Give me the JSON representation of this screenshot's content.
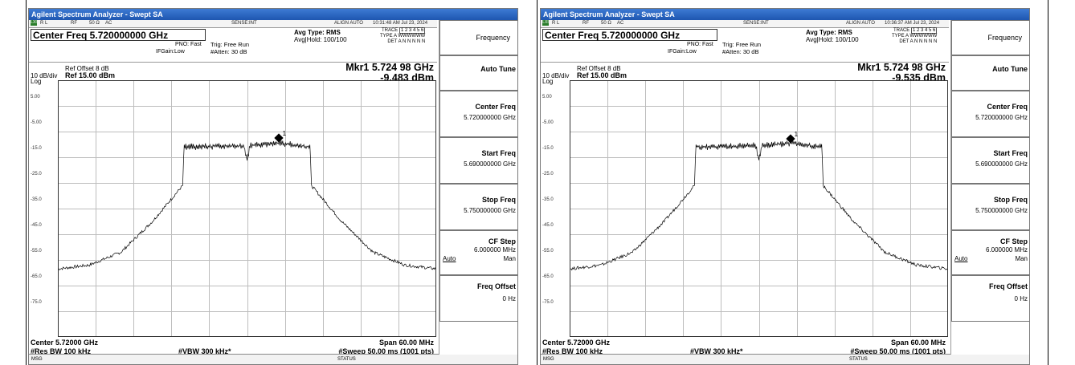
{
  "shared": {
    "window_title": "Agilent Spectrum Analyzer - Swept SA",
    "status": {
      "rl": "R L",
      "rf": "RF",
      "ohm": "50 Ω",
      "ac": "AC",
      "sense": "SENSE:INT",
      "align": "ALIGN AUTO"
    },
    "center_freq_box": "Center Freq 5.720000000 GHz",
    "pno": "PNO: Fast",
    "ifgain": "IFGain:Low",
    "trig": "Trig: Free Run",
    "atten": "#Atten: 30 dB",
    "avg_type": "Avg Type: RMS",
    "avg_hold": "Avg|Hold: 100/100",
    "trace_label": "TRACE",
    "trace_nums": "1 2 3 4 5 6",
    "type_label": "TYPE",
    "type_vals": "A WWWWWW",
    "det_label": "DET",
    "det_vals": "A N N N N N",
    "ref_offset": "Ref Offset 8 dB",
    "scale": "10 dB/div",
    "ref_level": "Ref 15.00 dBm",
    "log": "Log",
    "y_ticks": [
      "5.00",
      "-5.00",
      "-15.0",
      "-25.0",
      "-35.0",
      "-45.0",
      "-55.0",
      "-65.0",
      "-75.0"
    ],
    "center_bottom": "Center 5.72000 GHz",
    "span": "Span 60.00 MHz",
    "rbw": "#Res BW 100 kHz",
    "vbw": "#VBW 300 kHz*",
    "sweep": "#Sweep  50.00 ms (1001 pts)",
    "msg": "MSG",
    "status_label": "STATUS",
    "marker_num": "1"
  },
  "menu": {
    "frequency": "Frequency",
    "auto_tune": "Auto Tune",
    "center_freq": "Center Freq",
    "center_freq_val": "5.720000000 GHz",
    "start_freq": "Start Freq",
    "start_freq_val": "5.690000000 GHz",
    "stop_freq": "Stop Freq",
    "stop_freq_val": "5.750000000 GHz",
    "cf_step": "CF Step",
    "cf_step_val": "6.000000 MHz",
    "auto": "Auto",
    "man": "Man",
    "freq_offset": "Freq Offset",
    "freq_offset_val": "0 Hz"
  },
  "screens": [
    {
      "timestamp": "10:31:48 AM Jul 23, 2024",
      "marker_freq": "Mkr1 5.724 98 GHz",
      "marker_level": "-9.483 dBm"
    },
    {
      "timestamp": "10:36:37 AM Jul 23, 2024",
      "marker_freq": "Mkr1 5.724 98 GHz",
      "marker_level": "-9.535 dBm"
    }
  ],
  "chart_data": {
    "type": "line",
    "title": "",
    "xlabel": "",
    "ylabel": "",
    "xlim": [
      5.69,
      5.75
    ],
    "ylim": [
      -85,
      15
    ],
    "x_unit": "GHz",
    "y_unit": "dBm",
    "series": [
      {
        "x": [
          5.69,
          5.695,
          5.7,
          5.705,
          5.7098,
          5.71,
          5.7195,
          5.72,
          5.7205,
          5.72498,
          5.73,
          5.7302,
          5.735,
          5.74,
          5.745,
          5.75
        ],
        "y": [
          -58.5,
          -57,
          -52,
          -40,
          -26,
          -11,
          -10.5,
          -16,
          -10.5,
          -9.48,
          -11,
          -26,
          -40,
          -52,
          -57,
          -58.5
        ]
      },
      {
        "x": [
          5.69,
          5.695,
          5.7,
          5.705,
          5.7098,
          5.71,
          5.7195,
          5.72,
          5.7205,
          5.72498,
          5.73,
          5.7302,
          5.735,
          5.74,
          5.745,
          5.75
        ],
        "y": [
          -58.5,
          -57,
          -52,
          -40,
          -26,
          -11,
          -10.5,
          -16,
          -10.5,
          -9.54,
          -11,
          -26,
          -40,
          -52,
          -57,
          -58.5
        ]
      }
    ]
  }
}
